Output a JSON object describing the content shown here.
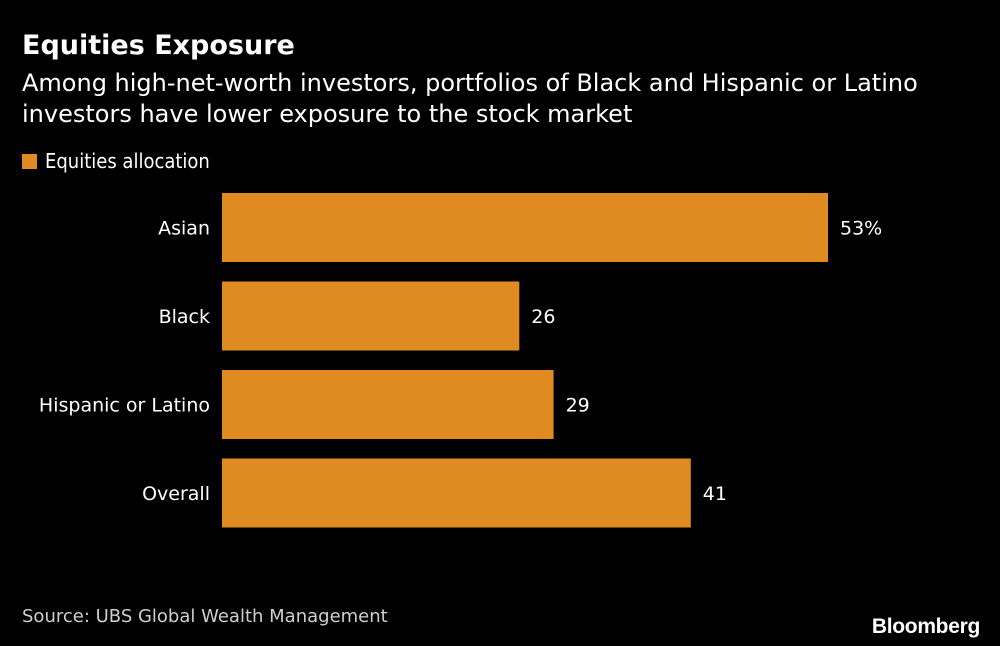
{
  "title": "Equities Exposure",
  "subtitle": "Among high-net-worth investors, portfolios of Black and Hispanic or Latino investors have lower exposure to the stock market",
  "legend": {
    "label": "Equities allocation"
  },
  "colors": {
    "background": "#000000",
    "bar": "#e08b22",
    "text": "#ffffff"
  },
  "source": "Source: UBS Global Wealth Management",
  "brand": "Bloomberg",
  "chart_data": {
    "type": "bar",
    "orientation": "horizontal",
    "categories": [
      "Asian",
      "Black",
      "Hispanic or Latino",
      "Overall"
    ],
    "series": [
      {
        "name": "Equities allocation",
        "values": [
          53,
          26,
          29,
          41
        ]
      }
    ],
    "value_labels": [
      "53%",
      "26",
      "29",
      "41"
    ],
    "unit": "%",
    "grid": false,
    "legend_position": "top-left"
  }
}
